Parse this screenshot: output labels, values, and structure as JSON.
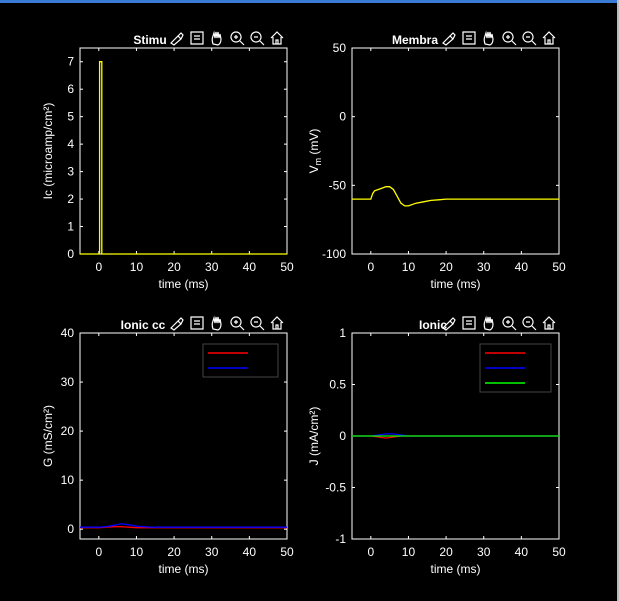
{
  "chart_data": [
    {
      "type": "line",
      "title": "Stimu",
      "xlabel": "time (ms)",
      "ylabel": "Ic  (microamp/cm²)",
      "xlim": [
        -5,
        50
      ],
      "ylim": [
        0,
        7.5
      ],
      "xticks": [
        "0",
        "10",
        "20",
        "30",
        "40",
        "50"
      ],
      "yticks": [
        "0",
        "1",
        "2",
        "3",
        "4",
        "5",
        "6",
        "7"
      ],
      "series": [
        {
          "color": "#ffff00",
          "x": [
            -5,
            0.2,
            0.2,
            0.8,
            0.8,
            50
          ],
          "y": [
            0,
            0,
            7,
            7,
            0,
            0
          ]
        }
      ],
      "legend": null
    },
    {
      "type": "line",
      "title": "Membra",
      "xlabel": "time (ms)",
      "ylabel": "V_m  (mV)",
      "xlim": [
        -5,
        50
      ],
      "ylim": [
        -100,
        50
      ],
      "xticks": [
        "0",
        "10",
        "20",
        "30",
        "40",
        "50"
      ],
      "yticks": [
        "-100",
        "-50",
        "0",
        "50"
      ],
      "series": [
        {
          "color": "#ffff00",
          "x": [
            -5,
            0,
            0.5,
            1,
            2,
            3,
            4,
            5,
            6,
            7,
            8,
            9,
            10,
            12,
            14,
            16,
            18,
            20,
            25,
            30,
            40,
            50
          ],
          "y": [
            -60,
            -60,
            -56,
            -54,
            -53,
            -52,
            -51,
            -51,
            -53,
            -58,
            -63,
            -65,
            -65,
            -63,
            -62,
            -61,
            -60.5,
            -60,
            -60,
            -60,
            -60,
            -60
          ]
        }
      ],
      "legend": null
    },
    {
      "type": "line",
      "title": "Ionic cc",
      "xlabel": "time (ms)",
      "ylabel": "G  (mS/cm²)",
      "xlim": [
        -5,
        50
      ],
      "ylim": [
        -2,
        40
      ],
      "xticks": [
        "0",
        "10",
        "20",
        "30",
        "40",
        "50"
      ],
      "yticks": [
        "0",
        "10",
        "20",
        "30",
        "40"
      ],
      "series": [
        {
          "color": "#ff0000",
          "x": [
            -5,
            0,
            2,
            4,
            6,
            8,
            10,
            14,
            20,
            30,
            50
          ],
          "y": [
            0.3,
            0.3,
            0.4,
            0.5,
            0.5,
            0.4,
            0.3,
            0.3,
            0.3,
            0.3,
            0.3
          ]
        },
        {
          "color": "#0000ff",
          "x": [
            -5,
            0,
            2,
            4,
            6,
            8,
            10,
            14,
            20,
            30,
            50
          ],
          "y": [
            0.4,
            0.4,
            0.5,
            0.8,
            1.1,
            0.9,
            0.6,
            0.4,
            0.4,
            0.4,
            0.4
          ]
        }
      ],
      "legend": {
        "placement": "top-right",
        "entries": [
          {
            "color": "#ff0000",
            "label": ""
          },
          {
            "color": "#0000ff",
            "label": ""
          }
        ]
      }
    },
    {
      "type": "line",
      "title": "Ionic",
      "xlabel": "time (ms)",
      "ylabel": "J  (mA/cm²)",
      "xlim": [
        -5,
        50
      ],
      "ylim": [
        -1,
        1
      ],
      "xticks": [
        "0",
        "10",
        "20",
        "30",
        "40",
        "50"
      ],
      "yticks": [
        "-1",
        "-0.5",
        "0",
        "0.5",
        "1"
      ],
      "series": [
        {
          "color": "#ff0000",
          "x": [
            -5,
            0,
            2,
            4,
            6,
            8,
            10,
            20,
            50
          ],
          "y": [
            0,
            0,
            -0.01,
            -0.02,
            -0.01,
            0,
            0,
            0,
            0
          ]
        },
        {
          "color": "#0000ff",
          "x": [
            -5,
            0,
            2,
            4,
            6,
            8,
            10,
            20,
            50
          ],
          "y": [
            0,
            0,
            0.01,
            0.02,
            0.02,
            0.01,
            0,
            0,
            0
          ]
        },
        {
          "color": "#00ff00",
          "x": [
            -5,
            0,
            10,
            20,
            50
          ],
          "y": [
            0,
            0,
            0,
            0,
            0
          ]
        }
      ],
      "legend": {
        "placement": "top-right",
        "entries": [
          {
            "color": "#ff0000",
            "label": ""
          },
          {
            "color": "#0000ff",
            "label": ""
          },
          {
            "color": "#00ff00",
            "label": ""
          }
        ]
      }
    }
  ]
}
